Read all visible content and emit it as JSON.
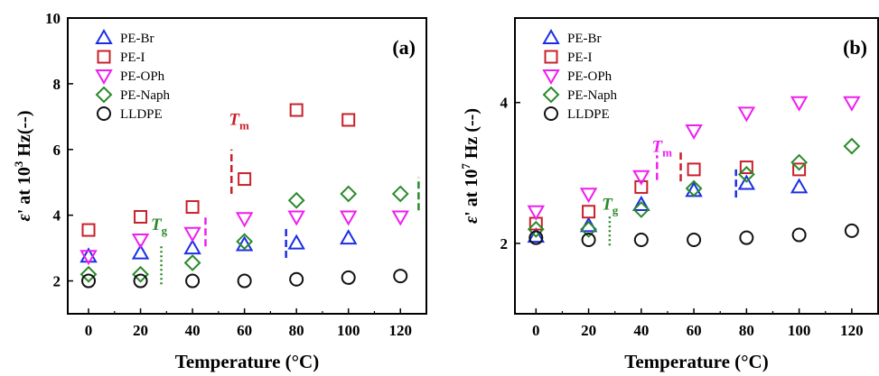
{
  "chart_data": [
    {
      "type": "scatter",
      "panel_label": "(a)",
      "xlabel": "Temperature (°C)",
      "ylabel": "ε' at 10³ Hz(--)",
      "ylabel_parts": {
        "eps": "ε",
        "prime": "'",
        "pre": " at 10",
        "sup": "3",
        "post": " Hz(--)"
      },
      "xlim": [
        -8,
        130
      ],
      "ylim": [
        1,
        10
      ],
      "xticks": [
        0,
        20,
        40,
        60,
        80,
        100,
        120
      ],
      "yticks": [
        2,
        4,
        6,
        8,
        10
      ],
      "legend_position": "top-left",
      "series": [
        {
          "name": "PE-Br",
          "marker": "triangle-up",
          "color": "#1a2ee6",
          "x": [
            0,
            20,
            40,
            60,
            80,
            100
          ],
          "y": [
            2.75,
            2.85,
            3.0,
            3.1,
            3.15,
            3.3
          ]
        },
        {
          "name": "PE-I",
          "marker": "square",
          "color": "#c8202a",
          "x": [
            0,
            20,
            40,
            60,
            80,
            100
          ],
          "y": [
            3.55,
            3.95,
            4.25,
            5.1,
            7.2,
            6.9
          ]
        },
        {
          "name": "PE-OPh",
          "marker": "triangle-down",
          "color": "#ee1eee",
          "x": [
            0,
            20,
            40,
            60,
            80,
            100,
            120
          ],
          "y": [
            2.75,
            3.25,
            3.45,
            3.9,
            3.95,
            3.95,
            3.95
          ]
        },
        {
          "name": "PE-Naph",
          "marker": "diamond",
          "color": "#2a8a2a",
          "x": [
            0,
            20,
            40,
            60,
            80,
            100,
            120
          ],
          "y": [
            2.2,
            2.2,
            2.55,
            3.2,
            4.45,
            4.65,
            4.65
          ]
        },
        {
          "name": "LLDPE",
          "marker": "circle",
          "color": "#111111",
          "x": [
            0,
            20,
            40,
            60,
            80,
            100,
            120
          ],
          "y": [
            2.0,
            2.0,
            2.0,
            2.0,
            2.05,
            2.1,
            2.15
          ]
        }
      ],
      "annotations": [
        {
          "kind": "text",
          "main": "T",
          "sub": "m",
          "x": 54,
          "y": 6.75,
          "color": "#c8202a"
        },
        {
          "kind": "text",
          "main": "T",
          "sub": "g",
          "x": 24,
          "y": 3.55,
          "color": "#2a8a2a"
        },
        {
          "kind": "vline",
          "x": 28,
          "y0": 1.9,
          "y1": 3.1,
          "color": "#2a8a2a",
          "style": "dotted"
        },
        {
          "kind": "vline",
          "x": 45,
          "y0": 3.05,
          "y1": 4.0,
          "color": "#ee1eee",
          "style": "dashed"
        },
        {
          "kind": "vline",
          "x": 55,
          "y0": 4.65,
          "y1": 6.0,
          "color": "#c8202a",
          "style": "dashed"
        },
        {
          "kind": "vline",
          "x": 76,
          "y0": 2.7,
          "y1": 3.6,
          "color": "#1a2ee6",
          "style": "dashed"
        },
        {
          "kind": "vline",
          "x": 127,
          "y0": 4.15,
          "y1": 5.15,
          "color": "#2a8a2a",
          "style": "dashed"
        }
      ]
    },
    {
      "type": "scatter",
      "panel_label": "(b)",
      "xlabel": "Temperature (°C)",
      "ylabel": "ε' at 10⁷ Hz (--)",
      "ylabel_parts": {
        "eps": "ε",
        "prime": "'",
        "pre": " at 10",
        "sup": "7",
        "post": " Hz (--)"
      },
      "xlim": [
        -8,
        130
      ],
      "ylim": [
        1,
        5.2
      ],
      "xticks": [
        0,
        20,
        40,
        60,
        80,
        100,
        120
      ],
      "yticks": [
        2,
        4
      ],
      "legend_position": "top-left",
      "series": [
        {
          "name": "PE-Br",
          "marker": "triangle-up",
          "color": "#1a2ee6",
          "x": [
            0,
            20,
            40,
            60,
            80,
            100
          ],
          "y": [
            2.1,
            2.25,
            2.55,
            2.75,
            2.85,
            2.8
          ]
        },
        {
          "name": "PE-I",
          "marker": "square",
          "color": "#c8202a",
          "x": [
            0,
            20,
            40,
            60,
            80,
            100
          ],
          "y": [
            2.28,
            2.45,
            2.8,
            3.05,
            3.08,
            3.05
          ]
        },
        {
          "name": "PE-OPh",
          "marker": "triangle-down",
          "color": "#ee1eee",
          "x": [
            0,
            20,
            40,
            60,
            80,
            100,
            120
          ],
          "y": [
            2.45,
            2.7,
            2.95,
            3.6,
            3.85,
            4.0,
            4.0
          ]
        },
        {
          "name": "PE-Naph",
          "marker": "diamond",
          "color": "#2a8a2a",
          "x": [
            0,
            20,
            40,
            60,
            80,
            100,
            120
          ],
          "y": [
            2.2,
            2.2,
            2.48,
            2.78,
            2.98,
            3.15,
            3.38
          ]
        },
        {
          "name": "LLDPE",
          "marker": "circle",
          "color": "#111111",
          "x": [
            0,
            20,
            40,
            60,
            80,
            100,
            120
          ],
          "y": [
            2.08,
            2.05,
            2.05,
            2.05,
            2.08,
            2.12,
            2.18
          ]
        }
      ],
      "annotations": [
        {
          "kind": "text",
          "main": "T",
          "sub": "m",
          "x": 44,
          "y": 3.3,
          "color": "#ee1eee"
        },
        {
          "kind": "text",
          "main": "T",
          "sub": "g",
          "x": 25,
          "y": 2.48,
          "color": "#2a8a2a"
        },
        {
          "kind": "vline",
          "x": 28,
          "y0": 1.97,
          "y1": 2.38,
          "color": "#2a8a2a",
          "style": "dotted"
        },
        {
          "kind": "vline",
          "x": 46,
          "y0": 2.9,
          "y1": 3.25,
          "color": "#ee1eee",
          "style": "dashed"
        },
        {
          "kind": "vline",
          "x": 55,
          "y0": 2.88,
          "y1": 3.32,
          "color": "#c8202a",
          "style": "dashed"
        },
        {
          "kind": "vline",
          "x": 76,
          "y0": 2.65,
          "y1": 3.05,
          "color": "#1a2ee6",
          "style": "dashed"
        }
      ]
    }
  ]
}
